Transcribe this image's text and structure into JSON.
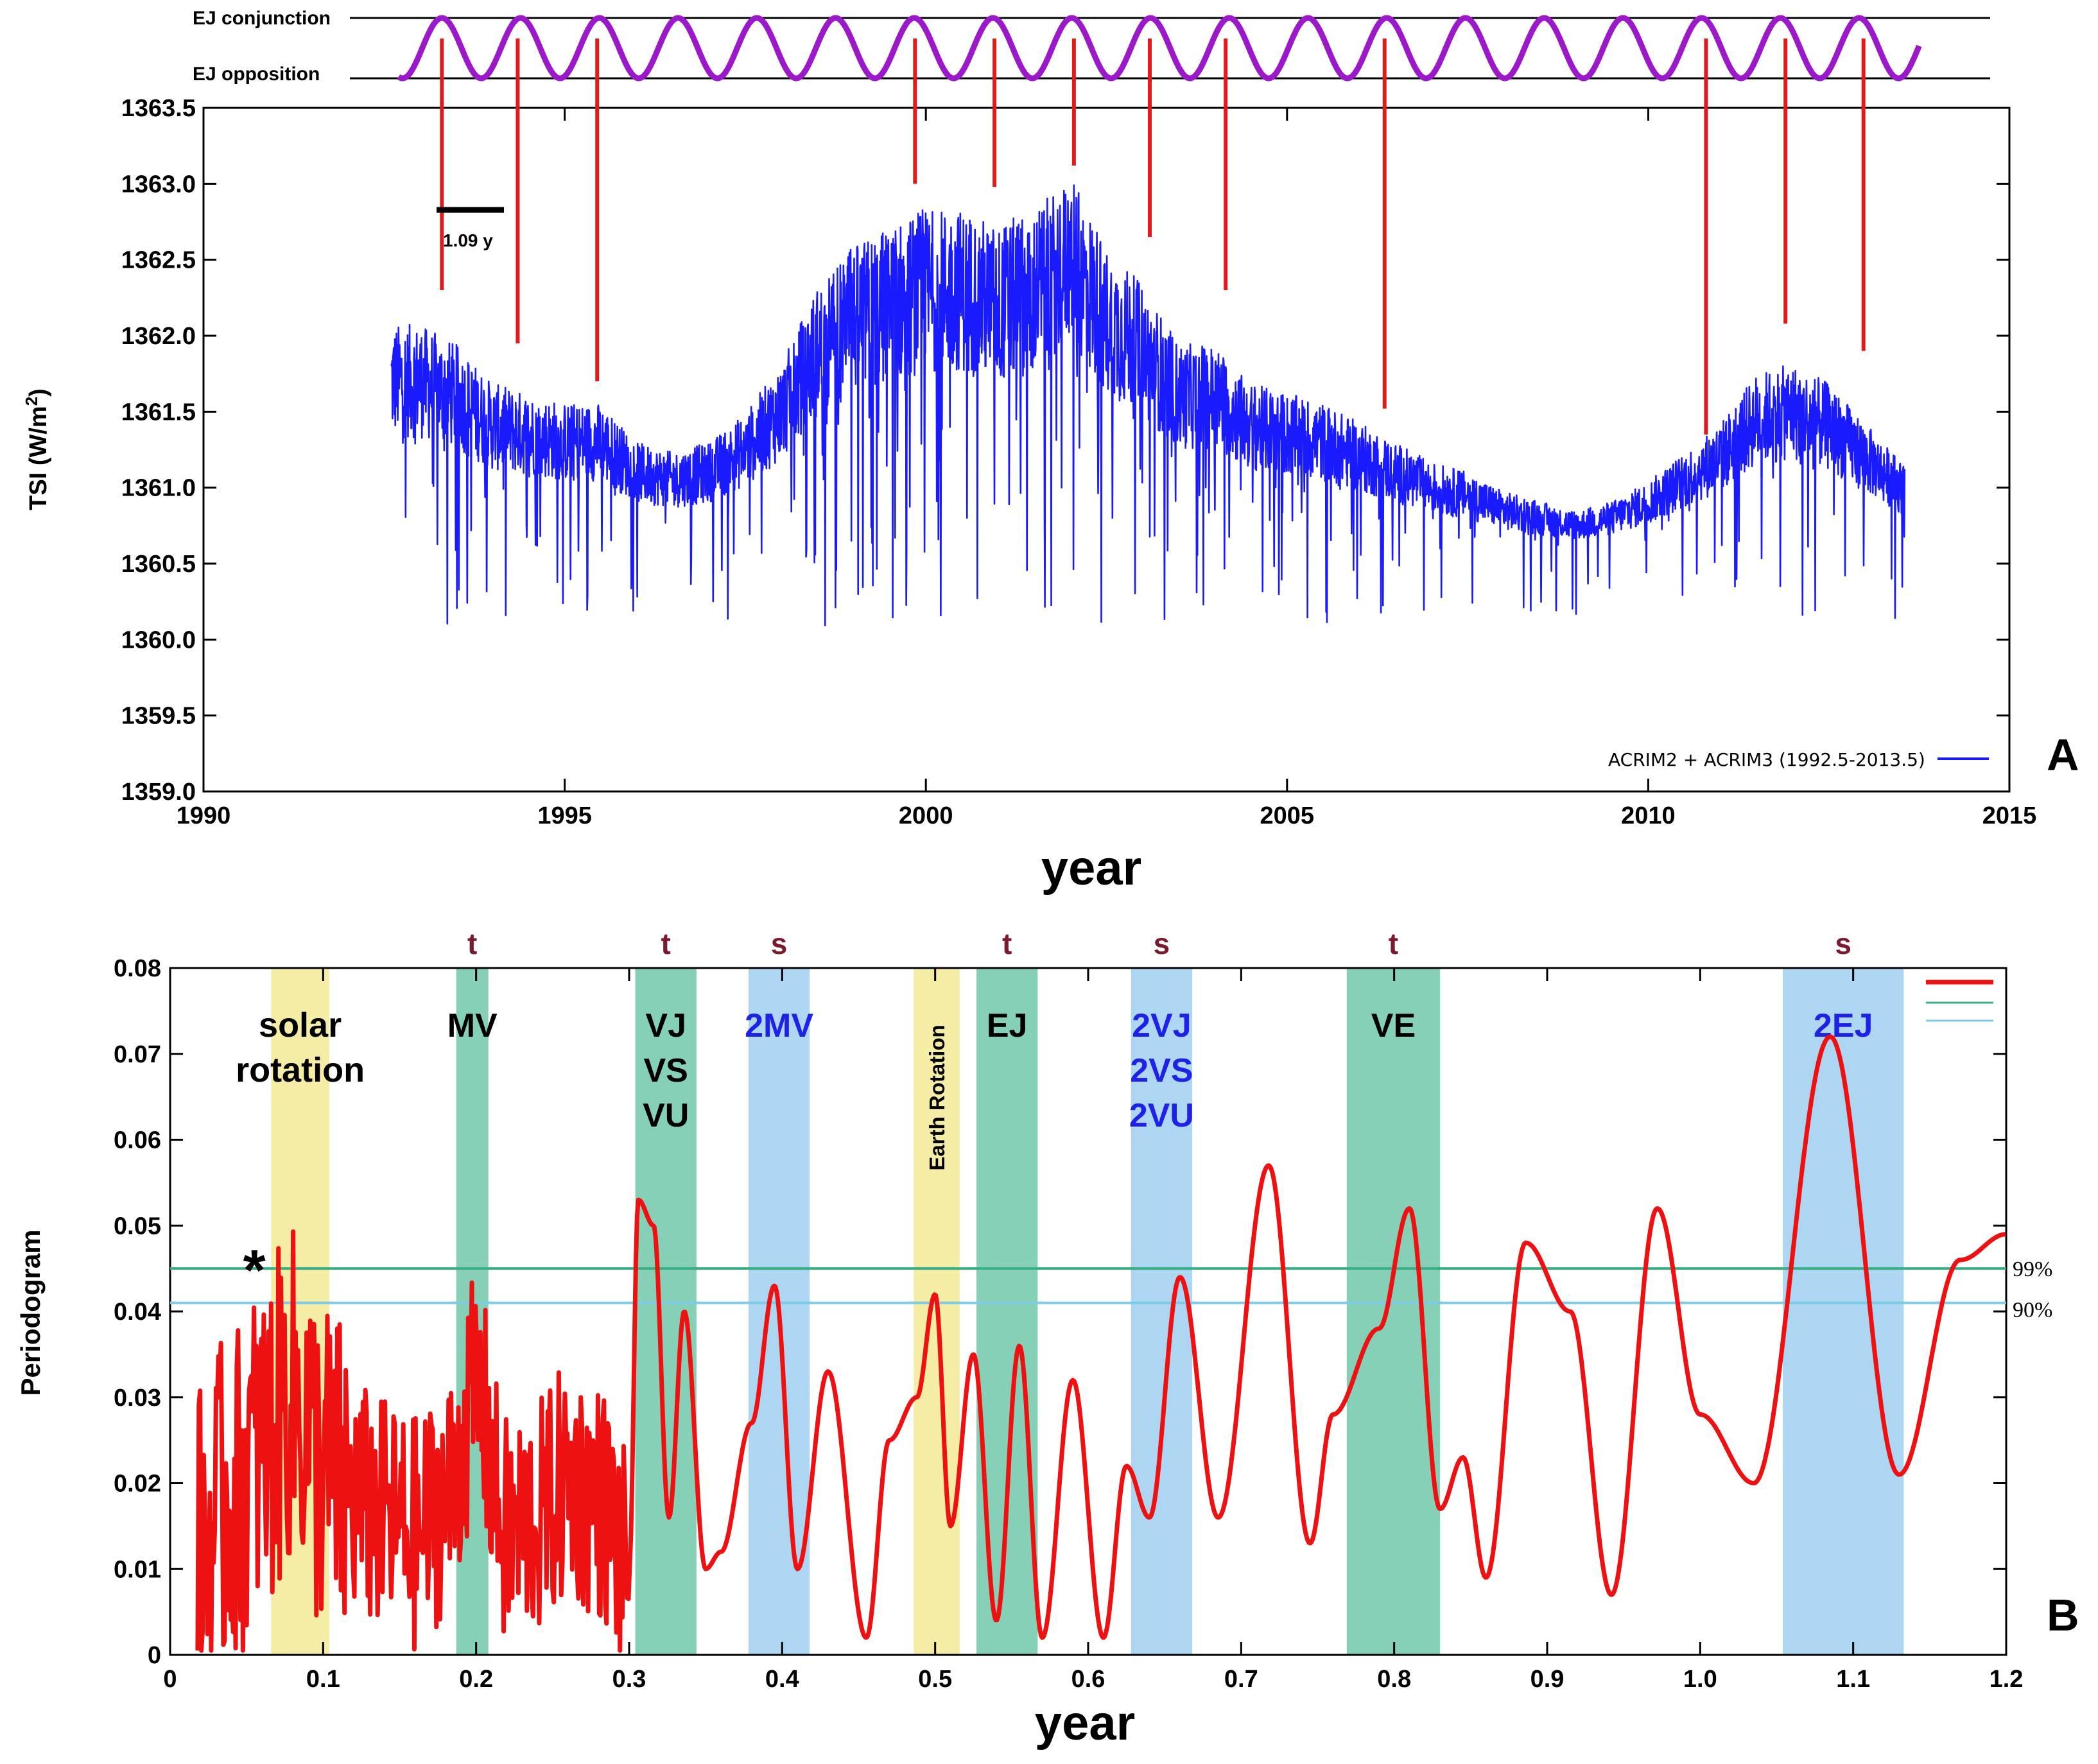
{
  "colors": {
    "tsi_line": "#1a1aff",
    "ej_wave": "#9b19c8",
    "red_markers": "#e01b1b",
    "periodogram_line": "#ee1111",
    "green_band": "#7ecdb2",
    "yellow_band": "#f4eba0",
    "blue_band": "#a9d4f2",
    "line_99": "#3aaf86",
    "line_90": "#7ecbe6",
    "label_black": "#000000",
    "label_blue": "#1f21e6",
    "label_maroon": "#7a1a2e"
  },
  "chart_data": [
    {
      "type": "line",
      "panel_letter": "A",
      "ylabel_main": "TSI (W/m",
      "ylabel_sup": "2",
      "ylabel_close": ")",
      "xlabel": "year",
      "xlim": [
        1990,
        2015
      ],
      "ylim": [
        1359.0,
        1363.5
      ],
      "x_ticks": [
        "1990",
        "1995",
        "2000",
        "2005",
        "2010",
        "2015"
      ],
      "y_ticks": [
        "1359.0",
        "1359.5",
        "1360.0",
        "1360.5",
        "1361.0",
        "1361.5",
        "1362.0",
        "1362.5",
        "1363.0",
        "1363.5"
      ],
      "legend": "ACRIM2 + ACRIM3  (1992.5-2013.5)",
      "ej_conjunction_label": "EJ conjunction",
      "ej_opposition_label": "EJ opposition",
      "ej_period_years": 1.09,
      "period_label": "1.09 y",
      "series": [
        {
          "name": "ACRIM2 + ACRIM3 (1992.5-2013.5)",
          "x": [
            1992.6,
            1993.0,
            1993.5,
            1994.0,
            1994.5,
            1995.0,
            1995.5,
            1996.0,
            1996.5,
            1997.0,
            1997.5,
            1998.0,
            1998.5,
            1999.0,
            1999.5,
            2000.0,
            2000.5,
            2001.0,
            2001.5,
            2002.0,
            2002.5,
            2003.0,
            2003.5,
            2004.0,
            2004.5,
            2005.0,
            2005.5,
            2006.0,
            2006.5,
            2007.0,
            2007.5,
            2008.0,
            2008.5,
            2009.0,
            2009.5,
            2010.0,
            2010.5,
            2011.0,
            2011.5,
            2012.0,
            2012.5,
            2013.0,
            2013.5
          ],
          "y": [
            1361.7,
            1361.7,
            1361.6,
            1361.4,
            1361.35,
            1361.3,
            1361.3,
            1361.1,
            1361.05,
            1361.1,
            1361.25,
            1361.5,
            1361.9,
            1362.1,
            1362.2,
            1362.3,
            1362.3,
            1362.2,
            1362.3,
            1362.5,
            1362.1,
            1361.9,
            1361.6,
            1361.6,
            1361.4,
            1361.35,
            1361.3,
            1361.2,
            1361.1,
            1361.0,
            1360.95,
            1360.85,
            1360.8,
            1360.75,
            1360.8,
            1360.9,
            1361.05,
            1361.2,
            1361.45,
            1361.5,
            1361.4,
            1361.2,
            1361.0
          ]
        }
      ],
      "conjunction_markers": [
        {
          "year": 1993.3,
          "tsi": 1362.3
        },
        {
          "year": 1994.35,
          "tsi": 1361.95
        },
        {
          "year": 1995.45,
          "tsi": 1361.7
        },
        {
          "year": 1999.85,
          "tsi": 1363.0
        },
        {
          "year": 2000.95,
          "tsi": 1362.98
        },
        {
          "year": 2002.05,
          "tsi": 1363.12
        },
        {
          "year": 2003.1,
          "tsi": 1362.65
        },
        {
          "year": 2004.15,
          "tsi": 1362.3
        },
        {
          "year": 2006.35,
          "tsi": 1361.52
        },
        {
          "year": 2010.8,
          "tsi": 1361.35
        },
        {
          "year": 2011.9,
          "tsi": 1362.08
        },
        {
          "year": 2012.98,
          "tsi": 1361.9
        }
      ]
    },
    {
      "type": "line",
      "panel_letter": "B",
      "ylabel": "Periodogram",
      "xlabel": "year",
      "xlim": [
        0,
        1.2
      ],
      "ylim": [
        0,
        0.08
      ],
      "x_ticks": [
        "0",
        "0.1",
        "0.2",
        "0.3",
        "0.4",
        "0.5",
        "0.6",
        "0.7",
        "0.8",
        "0.9",
        "1.0",
        "1.1",
        "1.2"
      ],
      "y_ticks": [
        "0",
        "0.01",
        "0.02",
        "0.03",
        "0.04",
        "0.05",
        "0.06",
        "0.07",
        "0.08"
      ],
      "significance": [
        {
          "label": "99%",
          "value": 0.045
        },
        {
          "label": "90%",
          "value": 0.041
        }
      ],
      "bands": [
        {
          "x0": 0.066,
          "x1": 0.104,
          "kind": "yellow",
          "label_lines": [
            "solar",
            "rotation"
          ],
          "label_color": "black",
          "top_letter": ""
        },
        {
          "x0": 0.187,
          "x1": 0.208,
          "kind": "green",
          "label_lines": [
            "MV"
          ],
          "label_color": "black",
          "top_letter": "t"
        },
        {
          "x0": 0.304,
          "x1": 0.344,
          "kind": "green",
          "label_lines": [
            "VJ",
            "VS",
            "VU"
          ],
          "label_color": "black",
          "top_letter": "t"
        },
        {
          "x0": 0.378,
          "x1": 0.418,
          "kind": "blue",
          "label_lines": [
            "2MV"
          ],
          "label_color": "blue",
          "top_letter": "s"
        },
        {
          "x0": 0.486,
          "x1": 0.516,
          "kind": "yellow",
          "label_lines": [
            "Earth Rotation"
          ],
          "label_color": "black",
          "top_letter": "",
          "vertical": true
        },
        {
          "x0": 0.527,
          "x1": 0.567,
          "kind": "green",
          "label_lines": [
            "EJ"
          ],
          "label_color": "black",
          "top_letter": "t"
        },
        {
          "x0": 0.628,
          "x1": 0.668,
          "kind": "blue",
          "label_lines": [
            "2VJ",
            "2VS",
            "2VU"
          ],
          "label_color": "blue",
          "top_letter": "s"
        },
        {
          "x0": 0.769,
          "x1": 0.83,
          "kind": "green",
          "label_lines": [
            "VE"
          ],
          "label_color": "black",
          "top_letter": "t"
        },
        {
          "x0": 1.054,
          "x1": 1.133,
          "kind": "blue",
          "label_lines": [
            "2EJ"
          ],
          "label_color": "blue",
          "top_letter": "s"
        }
      ],
      "star_marker": {
        "x": 0.055,
        "y": 0.0455,
        "label": "*"
      },
      "series": [
        {
          "name": "periodogram",
          "x": [
            0.02,
            0.04,
            0.06,
            0.08,
            0.1,
            0.12,
            0.14,
            0.16,
            0.18,
            0.2,
            0.22,
            0.24,
            0.26,
            0.28,
            0.3,
            0.306,
            0.316,
            0.326,
            0.336,
            0.35,
            0.36,
            0.38,
            0.395,
            0.41,
            0.43,
            0.455,
            0.47,
            0.488,
            0.5,
            0.51,
            0.525,
            0.54,
            0.555,
            0.57,
            0.59,
            0.61,
            0.625,
            0.64,
            0.66,
            0.685,
            0.718,
            0.745,
            0.76,
            0.79,
            0.81,
            0.83,
            0.845,
            0.86,
            0.886,
            0.915,
            0.942,
            0.972,
            1.0,
            1.035,
            1.085,
            1.13,
            1.17,
            1.2
          ],
          "y": [
            0.012,
            0.018,
            0.024,
            0.03,
            0.022,
            0.018,
            0.016,
            0.014,
            0.018,
            0.03,
            0.014,
            0.016,
            0.02,
            0.018,
            0.01,
            0.053,
            0.05,
            0.016,
            0.04,
            0.01,
            0.012,
            0.027,
            0.043,
            0.01,
            0.033,
            0.002,
            0.025,
            0.03,
            0.042,
            0.015,
            0.035,
            0.004,
            0.036,
            0.002,
            0.032,
            0.002,
            0.022,
            0.016,
            0.044,
            0.016,
            0.057,
            0.013,
            0.028,
            0.038,
            0.052,
            0.017,
            0.023,
            0.009,
            0.048,
            0.04,
            0.007,
            0.052,
            0.028,
            0.02,
            0.072,
            0.021,
            0.046,
            0.049
          ]
        }
      ]
    }
  ]
}
